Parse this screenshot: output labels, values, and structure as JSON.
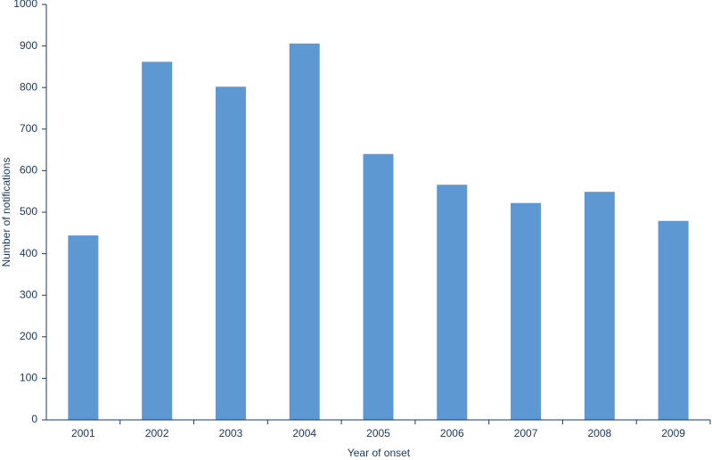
{
  "chart_data": {
    "type": "bar",
    "x_label": "Year of onset",
    "y_label": "Number of notifications",
    "categories": [
      "2001",
      "2002",
      "2003",
      "2004",
      "2005",
      "2006",
      "2007",
      "2008",
      "2009"
    ],
    "values": [
      444,
      862,
      802,
      906,
      640,
      566,
      522,
      549,
      479
    ],
    "color": "#5e98d3",
    "ylim": [
      0,
      1000
    ],
    "yticks": [
      0,
      100,
      200,
      300,
      400,
      500,
      600,
      700,
      800,
      900,
      1000
    ],
    "grid": false
  }
}
